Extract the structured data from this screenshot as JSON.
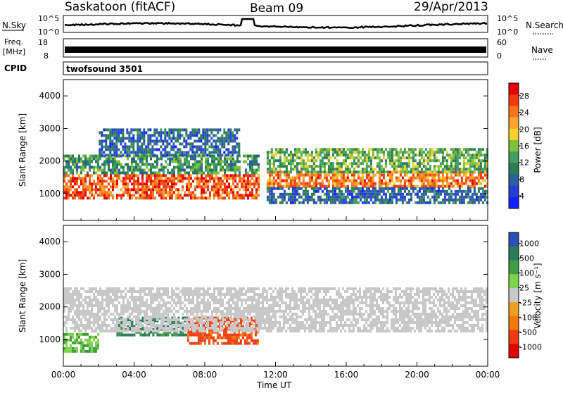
{
  "header": {
    "title": "Saskatoon (fitACF)",
    "beam": "Beam 09",
    "date": "29/Apr/2013"
  },
  "noise_panel": {
    "left_label": "N.Sky",
    "right_label": "N.Search",
    "left_ticks": [
      "10^5",
      "10^0"
    ],
    "right_ticks": [
      "10^5",
      "10^0"
    ]
  },
  "freq_panel": {
    "left_label_1": "Freq.",
    "left_label_2": "[MHz]",
    "right_label": "Nave",
    "left_ticks": [
      "18",
      "8"
    ],
    "right_ticks": [
      "60",
      "0"
    ]
  },
  "cpid": {
    "label": "CPID",
    "value": "twofsound 3501"
  },
  "axes": {
    "ylabel": "Slant Range [km]",
    "yticks": [
      "4000",
      "3000",
      "2000",
      "1000"
    ],
    "xlabel": "Time UT",
    "xticks": [
      "00:00",
      "04:00",
      "08:00",
      "12:00",
      "16:00",
      "20:00",
      "00:00"
    ]
  },
  "colorbars": {
    "power": {
      "label": "Power [dB]",
      "ticks": [
        "28",
        "24",
        "20",
        "16",
        "12",
        "8",
        "4"
      ],
      "colors": [
        "#e50000",
        "#f03a10",
        "#f7751c",
        "#fba62a",
        "#f4d12c",
        "#7fc13a",
        "#3f9e60",
        "#2b7d54",
        "#2d5f9b",
        "#2440d4",
        "#1222ff"
      ]
    },
    "velocity": {
      "label": "Velocity [m s⁻¹]",
      "ticks": [
        "1000",
        "500",
        "100",
        "25",
        "-25",
        "-100",
        "-500",
        "-1000"
      ],
      "colors": [
        "#2a4fb8",
        "#2d7a5c",
        "#3f9e3f",
        "#7fd24a",
        "#c8c8c8",
        "#f0a020",
        "#f07a10",
        "#ee3c10",
        "#e00000"
      ]
    }
  },
  "chart_data": [
    {
      "type": "heatmap",
      "panel": "power",
      "x_range": [
        "00:00",
        "24:00"
      ],
      "y_range": [
        180,
        4500
      ],
      "xlabel": "Time UT",
      "ylabel": "Slant Range [km]",
      "colorbar_label": "Power [dB]",
      "bands": [
        {
          "t_start": 0,
          "t_end": 11,
          "range_start": 900,
          "range_end": 1600,
          "power_db": 26
        },
        {
          "t_start": 0,
          "t_end": 11,
          "range_start": 1600,
          "range_end": 2200,
          "power_db": 12
        },
        {
          "t_start": 2,
          "t_end": 10,
          "range_start": 2200,
          "range_end": 3000,
          "power_db": 8
        },
        {
          "t_start": 11.5,
          "t_end": 24,
          "range_start": 1200,
          "range_end": 1700,
          "power_db": 24
        },
        {
          "t_start": 11.5,
          "t_end": 24,
          "range_start": 1700,
          "range_end": 2400,
          "power_db": 14
        },
        {
          "t_start": 11.5,
          "t_end": 24,
          "range_start": 700,
          "range_end": 1200,
          "power_db": 8
        }
      ]
    },
    {
      "type": "heatmap",
      "panel": "velocity",
      "x_range": [
        "00:00",
        "24:00"
      ],
      "y_range": [
        180,
        4500
      ],
      "xlabel": "Time UT",
      "ylabel": "Slant Range [km]",
      "colorbar_label": "Velocity [m s⁻¹]",
      "bands": [
        {
          "t_start": 0,
          "t_end": 2,
          "range_start": 600,
          "range_end": 1200,
          "velocity": 100
        },
        {
          "t_start": 3,
          "t_end": 7,
          "range_start": 1100,
          "range_end": 1700,
          "velocity": 500
        },
        {
          "t_start": 7,
          "t_end": 11,
          "range_start": 900,
          "range_end": 1700,
          "velocity": -500
        },
        {
          "t_start": 0,
          "t_end": 24,
          "range_start": 1300,
          "range_end": 2600,
          "velocity": 0
        }
      ]
    }
  ]
}
